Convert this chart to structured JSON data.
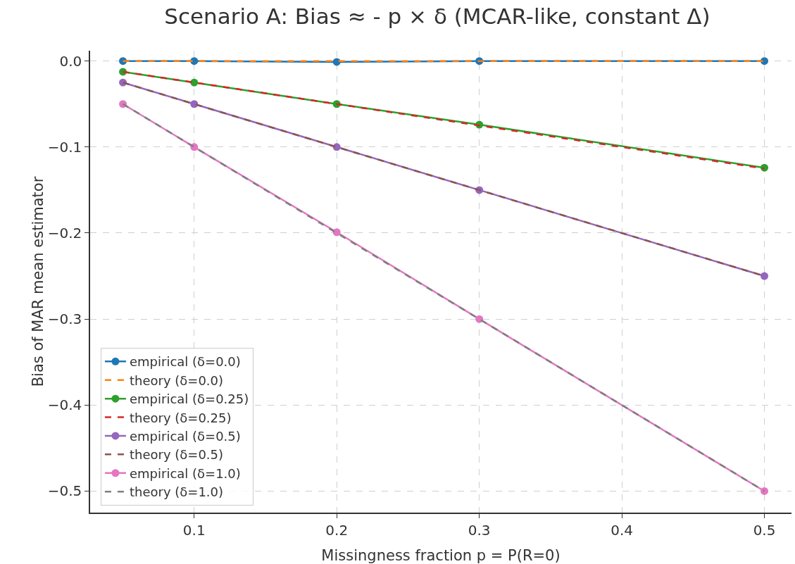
{
  "chart_data": {
    "type": "line",
    "title": "Scenario A: Bias ≈ - p × δ (MCAR-like, constant Δ)",
    "xlabel": "Missingness fraction p = P(R=0)",
    "ylabel": "Bias of MAR mean estimator",
    "x": [
      0.05,
      0.1,
      0.2,
      0.3,
      0.5
    ],
    "series": [
      {
        "name": "empirical (δ=0.0)",
        "color": "#1f77b4",
        "marker": "circle",
        "line_style": "solid",
        "values": [
          0,
          0,
          -0.001,
          0,
          0
        ]
      },
      {
        "name": "theory (δ=0.0)",
        "color": "#ff7f0e",
        "marker": "none",
        "line_style": "dashed",
        "values": [
          0,
          0,
          0,
          0,
          0
        ]
      },
      {
        "name": "empirical (δ=0.25)",
        "color": "#2ca02c",
        "marker": "circle",
        "line_style": "solid",
        "values": [
          -0.0125,
          -0.025,
          -0.05,
          -0.074,
          -0.124
        ]
      },
      {
        "name": "theory (δ=0.25)",
        "color": "#d62728",
        "marker": "none",
        "line_style": "dashed",
        "values": [
          -0.0125,
          -0.025,
          -0.05,
          -0.075,
          -0.125
        ]
      },
      {
        "name": "empirical (δ=0.5)",
        "color": "#9467bd",
        "marker": "circle",
        "line_style": "solid",
        "values": [
          -0.025,
          -0.05,
          -0.1,
          -0.15,
          -0.25
        ]
      },
      {
        "name": "theory (δ=0.5)",
        "color": "#8c564b",
        "marker": "none",
        "line_style": "dashed",
        "values": [
          -0.025,
          -0.05,
          -0.1,
          -0.15,
          -0.25
        ]
      },
      {
        "name": "empirical (δ=1.0)",
        "color": "#e377c2",
        "marker": "circle",
        "line_style": "solid",
        "values": [
          -0.05,
          -0.1,
          -0.199,
          -0.3,
          -0.5
        ]
      },
      {
        "name": "theory (δ=1.0)",
        "color": "#7f7f7f",
        "marker": "none",
        "line_style": "dashed",
        "values": [
          -0.05,
          -0.1,
          -0.2,
          -0.3,
          -0.5
        ]
      }
    ],
    "xlim": [
      0.027,
      0.519
    ],
    "xticks": [
      0.1,
      0.2,
      0.3,
      0.4,
      0.5
    ],
    "ylim": [
      -0.525,
      0.012
    ],
    "yticks": [
      {
        "value": 0,
        "label": "0.0"
      },
      {
        "value": -0.1,
        "label": "−0.1"
      },
      {
        "value": -0.2,
        "label": "−0.2"
      },
      {
        "value": -0.3,
        "label": "−0.3"
      },
      {
        "value": -0.4,
        "label": "−0.4"
      },
      {
        "value": -0.5,
        "label": "−0.5"
      }
    ],
    "grid": true,
    "legend": "bottom left"
  }
}
